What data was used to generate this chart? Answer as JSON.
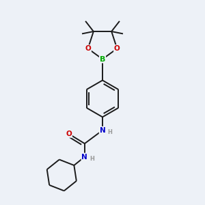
{
  "bg_color": "#edf1f7",
  "bond_color": "#1a1a1a",
  "bond_width": 1.4,
  "atom_colors": {
    "B": "#00aa00",
    "O": "#cc0000",
    "N": "#0000cc",
    "C": "#1a1a1a",
    "H": "#999999"
  },
  "font_size": 7.5
}
